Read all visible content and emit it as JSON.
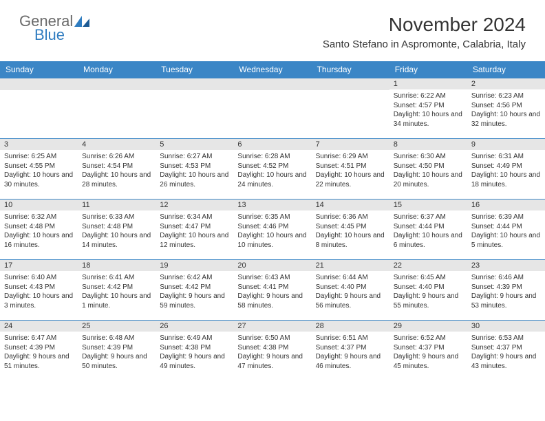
{
  "logo": {
    "text1": "General",
    "text2": "Blue"
  },
  "title": "November 2024",
  "location": "Santo Stefano in Aspromonte, Calabria, Italy",
  "colors": {
    "header_bg": "#3b86c6",
    "header_text": "#ffffff",
    "daynum_bg": "#e6e6e6",
    "daynum_border": "#3b86c6",
    "text": "#333333",
    "logo_grey": "#6a6a6a",
    "logo_blue": "#2f7cc0"
  },
  "daysOfWeek": [
    "Sunday",
    "Monday",
    "Tuesday",
    "Wednesday",
    "Thursday",
    "Friday",
    "Saturday"
  ],
  "weeks": [
    [
      null,
      null,
      null,
      null,
      null,
      {
        "n": "1",
        "sr": "Sunrise: 6:22 AM",
        "ss": "Sunset: 4:57 PM",
        "dl": "Daylight: 10 hours and 34 minutes."
      },
      {
        "n": "2",
        "sr": "Sunrise: 6:23 AM",
        "ss": "Sunset: 4:56 PM",
        "dl": "Daylight: 10 hours and 32 minutes."
      }
    ],
    [
      {
        "n": "3",
        "sr": "Sunrise: 6:25 AM",
        "ss": "Sunset: 4:55 PM",
        "dl": "Daylight: 10 hours and 30 minutes."
      },
      {
        "n": "4",
        "sr": "Sunrise: 6:26 AM",
        "ss": "Sunset: 4:54 PM",
        "dl": "Daylight: 10 hours and 28 minutes."
      },
      {
        "n": "5",
        "sr": "Sunrise: 6:27 AM",
        "ss": "Sunset: 4:53 PM",
        "dl": "Daylight: 10 hours and 26 minutes."
      },
      {
        "n": "6",
        "sr": "Sunrise: 6:28 AM",
        "ss": "Sunset: 4:52 PM",
        "dl": "Daylight: 10 hours and 24 minutes."
      },
      {
        "n": "7",
        "sr": "Sunrise: 6:29 AM",
        "ss": "Sunset: 4:51 PM",
        "dl": "Daylight: 10 hours and 22 minutes."
      },
      {
        "n": "8",
        "sr": "Sunrise: 6:30 AM",
        "ss": "Sunset: 4:50 PM",
        "dl": "Daylight: 10 hours and 20 minutes."
      },
      {
        "n": "9",
        "sr": "Sunrise: 6:31 AM",
        "ss": "Sunset: 4:49 PM",
        "dl": "Daylight: 10 hours and 18 minutes."
      }
    ],
    [
      {
        "n": "10",
        "sr": "Sunrise: 6:32 AM",
        "ss": "Sunset: 4:48 PM",
        "dl": "Daylight: 10 hours and 16 minutes."
      },
      {
        "n": "11",
        "sr": "Sunrise: 6:33 AM",
        "ss": "Sunset: 4:48 PM",
        "dl": "Daylight: 10 hours and 14 minutes."
      },
      {
        "n": "12",
        "sr": "Sunrise: 6:34 AM",
        "ss": "Sunset: 4:47 PM",
        "dl": "Daylight: 10 hours and 12 minutes."
      },
      {
        "n": "13",
        "sr": "Sunrise: 6:35 AM",
        "ss": "Sunset: 4:46 PM",
        "dl": "Daylight: 10 hours and 10 minutes."
      },
      {
        "n": "14",
        "sr": "Sunrise: 6:36 AM",
        "ss": "Sunset: 4:45 PM",
        "dl": "Daylight: 10 hours and 8 minutes."
      },
      {
        "n": "15",
        "sr": "Sunrise: 6:37 AM",
        "ss": "Sunset: 4:44 PM",
        "dl": "Daylight: 10 hours and 6 minutes."
      },
      {
        "n": "16",
        "sr": "Sunrise: 6:39 AM",
        "ss": "Sunset: 4:44 PM",
        "dl": "Daylight: 10 hours and 5 minutes."
      }
    ],
    [
      {
        "n": "17",
        "sr": "Sunrise: 6:40 AM",
        "ss": "Sunset: 4:43 PM",
        "dl": "Daylight: 10 hours and 3 minutes."
      },
      {
        "n": "18",
        "sr": "Sunrise: 6:41 AM",
        "ss": "Sunset: 4:42 PM",
        "dl": "Daylight: 10 hours and 1 minute."
      },
      {
        "n": "19",
        "sr": "Sunrise: 6:42 AM",
        "ss": "Sunset: 4:42 PM",
        "dl": "Daylight: 9 hours and 59 minutes."
      },
      {
        "n": "20",
        "sr": "Sunrise: 6:43 AM",
        "ss": "Sunset: 4:41 PM",
        "dl": "Daylight: 9 hours and 58 minutes."
      },
      {
        "n": "21",
        "sr": "Sunrise: 6:44 AM",
        "ss": "Sunset: 4:40 PM",
        "dl": "Daylight: 9 hours and 56 minutes."
      },
      {
        "n": "22",
        "sr": "Sunrise: 6:45 AM",
        "ss": "Sunset: 4:40 PM",
        "dl": "Daylight: 9 hours and 55 minutes."
      },
      {
        "n": "23",
        "sr": "Sunrise: 6:46 AM",
        "ss": "Sunset: 4:39 PM",
        "dl": "Daylight: 9 hours and 53 minutes."
      }
    ],
    [
      {
        "n": "24",
        "sr": "Sunrise: 6:47 AM",
        "ss": "Sunset: 4:39 PM",
        "dl": "Daylight: 9 hours and 51 minutes."
      },
      {
        "n": "25",
        "sr": "Sunrise: 6:48 AM",
        "ss": "Sunset: 4:39 PM",
        "dl": "Daylight: 9 hours and 50 minutes."
      },
      {
        "n": "26",
        "sr": "Sunrise: 6:49 AM",
        "ss": "Sunset: 4:38 PM",
        "dl": "Daylight: 9 hours and 49 minutes."
      },
      {
        "n": "27",
        "sr": "Sunrise: 6:50 AM",
        "ss": "Sunset: 4:38 PM",
        "dl": "Daylight: 9 hours and 47 minutes."
      },
      {
        "n": "28",
        "sr": "Sunrise: 6:51 AM",
        "ss": "Sunset: 4:37 PM",
        "dl": "Daylight: 9 hours and 46 minutes."
      },
      {
        "n": "29",
        "sr": "Sunrise: 6:52 AM",
        "ss": "Sunset: 4:37 PM",
        "dl": "Daylight: 9 hours and 45 minutes."
      },
      {
        "n": "30",
        "sr": "Sunrise: 6:53 AM",
        "ss": "Sunset: 4:37 PM",
        "dl": "Daylight: 9 hours and 43 minutes."
      }
    ]
  ]
}
